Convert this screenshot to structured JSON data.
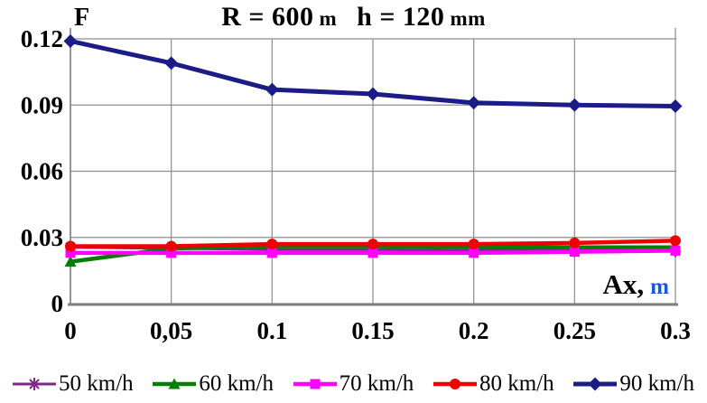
{
  "title": {
    "part1": "R = 600",
    "unit1": "m",
    "part2": "h = 120",
    "unit2": "mm"
  },
  "axes": {
    "y_label": "F",
    "x_label_main": "Ax,",
    "x_label_unit": "m"
  },
  "colors": {
    "grid": "#8d8d8d",
    "axis": "#7f7f7f",
    "unit_blue": "#1a57e0",
    "text": "#000000"
  },
  "chart_data": {
    "type": "line",
    "title": "R = 600 m  h = 120 mm",
    "xlabel": "Ax, m",
    "ylabel": "F",
    "x": [
      0,
      0.05,
      0.1,
      0.15,
      0.2,
      0.25,
      0.3
    ],
    "x_tick_labels": [
      "0",
      "0,05",
      "0.1",
      "0.15",
      "0.2",
      "0.25",
      "0.3"
    ],
    "y_ticks": [
      0,
      0.03,
      0.06,
      0.09,
      0.12
    ],
    "y_tick_labels": [
      "0",
      "0.03",
      "0.06",
      "0.09",
      "0.12"
    ],
    "xlim": [
      0,
      0.3
    ],
    "ylim": [
      0,
      0.12
    ],
    "grid": true,
    "legend_position": "bottom",
    "series": [
      {
        "name": "50 km/h",
        "color": "#7b2b85",
        "marker": "asterisk",
        "values": [
          0.0255,
          0.025,
          0.0245,
          0.0245,
          0.024,
          0.024,
          0.024
        ]
      },
      {
        "name": "60 km/h",
        "color": "#077d07",
        "marker": "triangle",
        "values": [
          0.019,
          0.025,
          0.026,
          0.026,
          0.0255,
          0.0255,
          0.0255
        ]
      },
      {
        "name": "70 km/h",
        "color": "#ff00ff",
        "marker": "square",
        "values": [
          0.023,
          0.023,
          0.023,
          0.023,
          0.023,
          0.0235,
          0.024
        ]
      },
      {
        "name": "80 km/h",
        "color": "#ee0000",
        "marker": "circle",
        "values": [
          0.026,
          0.026,
          0.027,
          0.027,
          0.027,
          0.0275,
          0.0285
        ]
      },
      {
        "name": "90 km/h",
        "color": "#1c1c87",
        "marker": "diamond",
        "values": [
          0.119,
          0.109,
          0.097,
          0.095,
          0.091,
          0.09,
          0.0895
        ]
      }
    ]
  }
}
